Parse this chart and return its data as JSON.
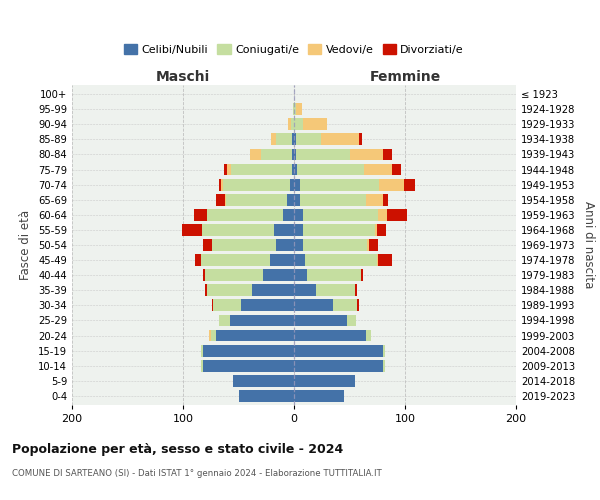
{
  "age_groups": [
    "0-4",
    "5-9",
    "10-14",
    "15-19",
    "20-24",
    "25-29",
    "30-34",
    "35-39",
    "40-44",
    "45-49",
    "50-54",
    "55-59",
    "60-64",
    "65-69",
    "70-74",
    "75-79",
    "80-84",
    "85-89",
    "90-94",
    "95-99",
    "100+"
  ],
  "birth_years": [
    "2019-2023",
    "2014-2018",
    "2009-2013",
    "2004-2008",
    "1999-2003",
    "1994-1998",
    "1989-1993",
    "1984-1988",
    "1979-1983",
    "1974-1978",
    "1969-1973",
    "1964-1968",
    "1959-1963",
    "1954-1958",
    "1949-1953",
    "1944-1948",
    "1939-1943",
    "1934-1938",
    "1929-1933",
    "1924-1928",
    "≤ 1923"
  ],
  "maschi": {
    "celibi": [
      50,
      55,
      82,
      82,
      70,
      58,
      48,
      38,
      28,
      22,
      16,
      18,
      10,
      6,
      4,
      2,
      2,
      2,
      0,
      0,
      0
    ],
    "coniugati": [
      0,
      0,
      2,
      2,
      5,
      10,
      25,
      40,
      52,
      62,
      58,
      65,
      68,
      55,
      60,
      55,
      28,
      14,
      3,
      1,
      0
    ],
    "vedovi": [
      0,
      0,
      0,
      0,
      2,
      0,
      0,
      0,
      0,
      0,
      0,
      0,
      0,
      1,
      2,
      3,
      10,
      5,
      2,
      0,
      0
    ],
    "divorziati": [
      0,
      0,
      0,
      0,
      0,
      0,
      1,
      2,
      2,
      5,
      8,
      18,
      12,
      8,
      2,
      3,
      0,
      0,
      0,
      0,
      0
    ]
  },
  "femmine": {
    "nubili": [
      45,
      55,
      80,
      80,
      65,
      48,
      35,
      20,
      12,
      10,
      8,
      8,
      8,
      5,
      5,
      3,
      2,
      2,
      0,
      0,
      0
    ],
    "coniugate": [
      0,
      0,
      2,
      2,
      4,
      8,
      22,
      35,
      48,
      65,
      58,
      65,
      68,
      60,
      72,
      60,
      48,
      22,
      8,
      2,
      0
    ],
    "vedove": [
      0,
      0,
      0,
      0,
      0,
      0,
      0,
      0,
      0,
      1,
      2,
      2,
      8,
      15,
      22,
      25,
      30,
      35,
      22,
      5,
      0
    ],
    "divorziate": [
      0,
      0,
      0,
      0,
      0,
      0,
      2,
      2,
      2,
      12,
      8,
      8,
      18,
      5,
      10,
      8,
      8,
      2,
      0,
      0,
      0
    ]
  },
  "colors": {
    "celibi_nubili": "#4472a8",
    "coniugati": "#c5dea0",
    "vedovi": "#f5c878",
    "divorziati": "#cc1100"
  },
  "title": "Popolazione per età, sesso e stato civile - 2024",
  "subtitle": "COMUNE DI SARTEANO (SI) - Dati ISTAT 1° gennaio 2024 - Elaborazione TUTTITALIA.IT",
  "xlabel_left": "Maschi",
  "xlabel_right": "Femmine",
  "ylabel_left": "Fasce di età",
  "ylabel_right": "Anni di nascita",
  "xlim": 200,
  "legend_labels": [
    "Celibi/Nubili",
    "Coniugati/e",
    "Vedovi/e",
    "Divorziati/e"
  ],
  "background_color": "#ffffff",
  "plot_bg_color": "#eef2ee",
  "grid_color": "#bbbbbb"
}
